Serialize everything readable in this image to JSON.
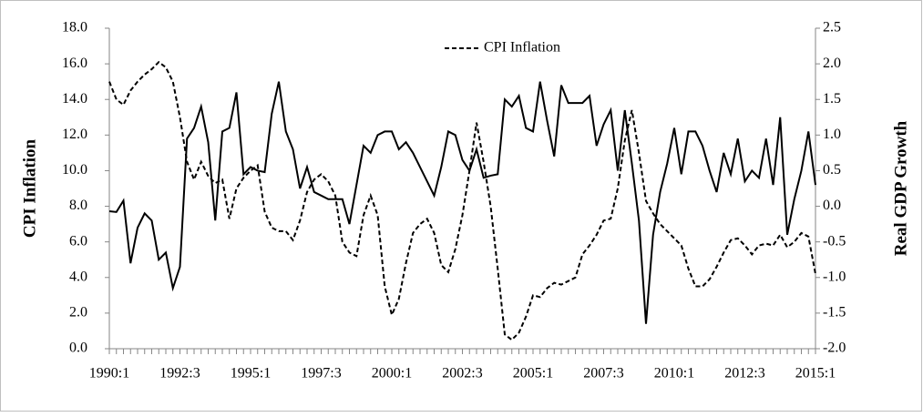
{
  "chart_data": {
    "type": "line",
    "categories": [
      "1990:1",
      null,
      null,
      null,
      null,
      null,
      null,
      null,
      null,
      null,
      "1992:3",
      null,
      null,
      null,
      null,
      null,
      null,
      null,
      null,
      null,
      "1995:1",
      null,
      null,
      null,
      null,
      null,
      null,
      null,
      null,
      null,
      "1997:3",
      null,
      null,
      null,
      null,
      null,
      null,
      null,
      null,
      null,
      "2000:1",
      null,
      null,
      null,
      null,
      null,
      null,
      null,
      null,
      null,
      "2002:3",
      null,
      null,
      null,
      null,
      null,
      null,
      null,
      null,
      null,
      "2005:1",
      null,
      null,
      null,
      null,
      null,
      null,
      null,
      null,
      null,
      "2007:3",
      null,
      null,
      null,
      null,
      null,
      null,
      null,
      null,
      null,
      "2010:1",
      null,
      null,
      null,
      null,
      null,
      null,
      null,
      null,
      null,
      "2012:3",
      null,
      null,
      null,
      null,
      null,
      null,
      null,
      null,
      null,
      "2015:1"
    ],
    "series": [
      {
        "name": "CPI Inflation",
        "color": "#000000",
        "dash": true,
        "axis": "y",
        "values": [
          15.0,
          14.0,
          13.7,
          14.5,
          15.0,
          15.4,
          15.7,
          16.1,
          15.8,
          15.0,
          13.0,
          10.5,
          9.5,
          10.5,
          9.7,
          9.3,
          9.5,
          7.3,
          9.0,
          9.6,
          10.0,
          10.3,
          7.7,
          6.8,
          6.6,
          6.6,
          6.1,
          7.2,
          8.8,
          9.5,
          9.8,
          9.4,
          8.6,
          6.0,
          5.4,
          5.2,
          7.5,
          8.6,
          7.5,
          3.5,
          1.9,
          2.8,
          4.8,
          6.5,
          7.0,
          7.3,
          6.5,
          4.7,
          4.3,
          5.6,
          7.5,
          10.0,
          12.7,
          10.5,
          8.0,
          4.5,
          0.8,
          0.5,
          0.9,
          1.8,
          3.0,
          2.9,
          3.4,
          3.7,
          3.6,
          3.8,
          4.0,
          5.3,
          5.8,
          6.4,
          7.2,
          7.3,
          9.0,
          11.7,
          13.4,
          11.0,
          8.3,
          7.6,
          7.0,
          6.6,
          6.2,
          5.8,
          4.5,
          3.5,
          3.5,
          3.9,
          4.6,
          5.4,
          6.1,
          6.2,
          5.8,
          5.3,
          5.8,
          5.9,
          5.8,
          6.4,
          5.7,
          6.0,
          6.5,
          6.3,
          4.2
        ]
      },
      {
        "color": "#000000",
        "dash": false,
        "axis": "y2",
        "values": [
          -0.07,
          -0.08,
          0.08,
          -0.8,
          -0.3,
          -0.1,
          -0.2,
          -0.75,
          -0.65,
          -1.15,
          -0.85,
          0.95,
          1.1,
          1.4,
          0.9,
          -0.2,
          1.05,
          1.1,
          1.6,
          0.45,
          0.55,
          0.5,
          0.48,
          1.3,
          1.75,
          1.05,
          0.8,
          0.25,
          0.55,
          0.2,
          0.15,
          0.1,
          0.1,
          0.1,
          -0.25,
          0.3,
          0.85,
          0.75,
          1.0,
          1.05,
          1.05,
          0.8,
          0.9,
          0.75,
          0.55,
          0.35,
          0.15,
          0.55,
          1.05,
          1.0,
          0.65,
          0.5,
          0.8,
          0.4,
          0.43,
          0.45,
          1.5,
          1.4,
          1.55,
          1.1,
          1.05,
          1.75,
          1.2,
          0.7,
          1.7,
          1.45,
          1.45,
          1.45,
          1.55,
          0.85,
          1.15,
          1.35,
          0.5,
          1.35,
          0.6,
          -0.2,
          -1.65,
          -0.4,
          0.2,
          0.6,
          1.1,
          0.45,
          1.05,
          1.05,
          0.85,
          0.5,
          0.2,
          0.75,
          0.45,
          0.95,
          0.35,
          0.5,
          0.4,
          0.95,
          0.3,
          1.25,
          -0.4,
          0.1,
          0.5,
          1.05,
          0.3
        ]
      }
    ],
    "ylabel": "CPI Inflation",
    "y2label": "Real GDP Growth",
    "ylim": [
      0,
      18
    ],
    "yticks": [
      {
        "value": 0,
        "label": "0.0"
      },
      {
        "value": 2,
        "label": "2.0"
      },
      {
        "value": 4,
        "label": "4.0"
      },
      {
        "value": 6,
        "label": "6.0"
      },
      {
        "value": 8,
        "label": "8.0"
      },
      {
        "value": 10,
        "label": "10.0"
      },
      {
        "value": 12,
        "label": "12.0"
      },
      {
        "value": 14,
        "label": "14.0"
      },
      {
        "value": 16,
        "label": "16.0"
      },
      {
        "value": 18,
        "label": "18.0"
      }
    ],
    "y2lim": [
      -2,
      2.5
    ],
    "y2ticks": [
      {
        "value": -2,
        "label": "-2.0"
      },
      -1.5,
      {
        "value": -1,
        "label": "-1.0"
      },
      -0.5,
      {
        "value": 0,
        "label": "0.0"
      },
      0.5,
      {
        "value": 1,
        "label": "1.0"
      },
      1.5,
      {
        "value": 2,
        "label": "2.0"
      },
      2.5
    ],
    "grid": false,
    "legend": "top"
  }
}
